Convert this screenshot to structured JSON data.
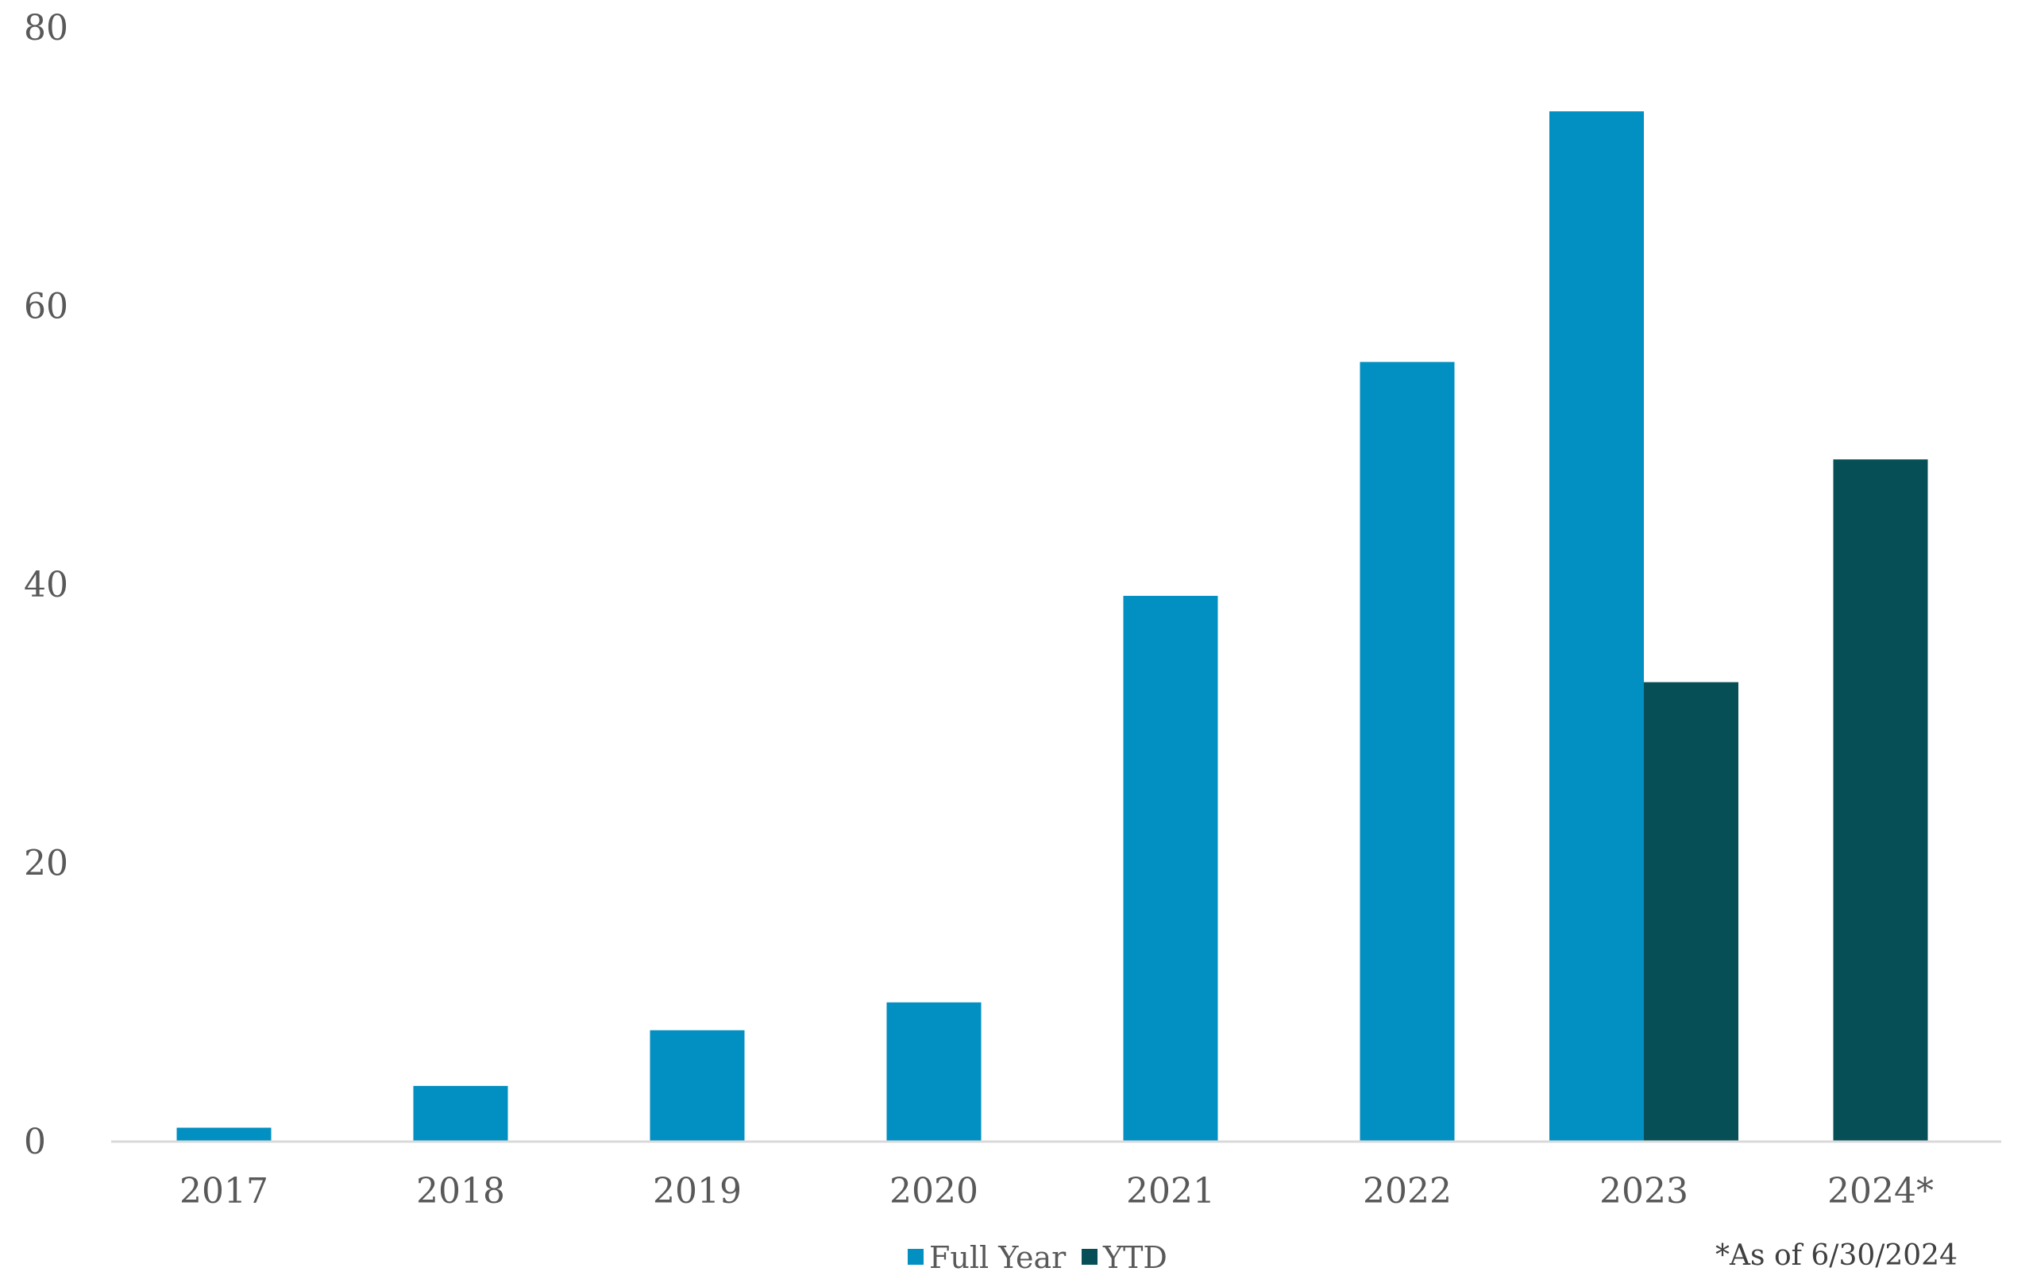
{
  "chart_data": {
    "type": "bar",
    "categories": [
      "2017",
      "2018",
      "2019",
      "2020",
      "2021",
      "2022",
      "2023",
      "2024*"
    ],
    "series": [
      {
        "name": "Full Year",
        "color": "#028FC1",
        "values": [
          1,
          4,
          8,
          10,
          39.2,
          56,
          74,
          null
        ]
      },
      {
        "name": "YTD",
        "color": "#064F56",
        "values": [
          null,
          null,
          null,
          null,
          null,
          null,
          33,
          49
        ]
      }
    ],
    "ylim": [
      0,
      80
    ],
    "yticks": [
      0,
      20,
      40,
      60,
      80
    ],
    "grid": false,
    "legend": "bottom-center",
    "footnote": "*As of 6/30/2024"
  }
}
